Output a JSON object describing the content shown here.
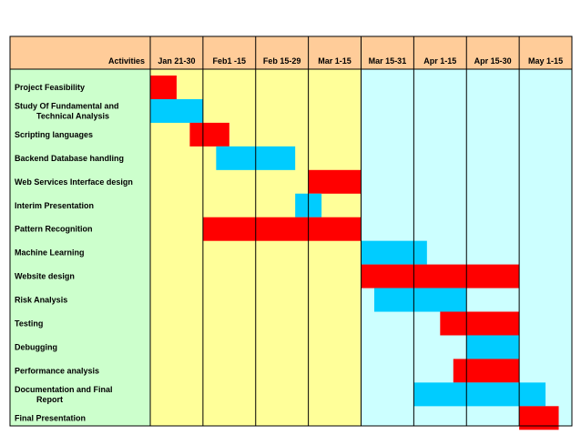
{
  "chart_data": {
    "type": "gantt",
    "header_label": "Activities",
    "periods": [
      "Jan 21-30",
      "Feb1 -15",
      "Feb 15-29",
      "Mar 1-15",
      "Mar 15-31",
      "Apr 1-15",
      "Apr 15-30",
      "May 1-15"
    ],
    "activities": [
      {
        "label": [
          "Project Feasibility"
        ],
        "start": 0.0,
        "end": 0.5,
        "status": "red"
      },
      {
        "label": [
          "Study Of Fundamental and",
          "Technical Analysis"
        ],
        "start": 0.0,
        "end": 1.0,
        "status": "blue"
      },
      {
        "label": [
          "Scripting languages"
        ],
        "start": 0.75,
        "end": 1.5,
        "status": "red"
      },
      {
        "label": [
          "Backend Database handling"
        ],
        "start": 1.25,
        "end": 2.75,
        "status": "blue"
      },
      {
        "label": [
          "Web Services Interface design"
        ],
        "start": 3.0,
        "end": 4.0,
        "status": "red"
      },
      {
        "label": [
          "Interim Presentation"
        ],
        "start": 2.75,
        "end": 3.25,
        "status": "blue"
      },
      {
        "label": [
          "Pattern Recognition"
        ],
        "start": 1.0,
        "end": 4.0,
        "status": "red"
      },
      {
        "label": [
          "Machine Learning"
        ],
        "start": 4.0,
        "end": 5.25,
        "status": "blue"
      },
      {
        "label": [
          "Website design"
        ],
        "start": 4.0,
        "end": 7.0,
        "status": "red"
      },
      {
        "label": [
          "Risk Analysis"
        ],
        "start": 4.25,
        "end": 6.0,
        "status": "blue"
      },
      {
        "label": [
          "Testing"
        ],
        "start": 5.5,
        "end": 7.0,
        "status": "red"
      },
      {
        "label": [
          "Debugging"
        ],
        "start": 6.0,
        "end": 7.0,
        "status": "blue"
      },
      {
        "label": [
          "Performance analysis"
        ],
        "start": 5.75,
        "end": 7.0,
        "status": "red"
      },
      {
        "label": [
          "Documentation and Final",
          "Report"
        ],
        "start": 5.0,
        "end": 7.5,
        "status": "blue"
      },
      {
        "label": [
          "Final Presentation"
        ],
        "start": 7.0,
        "end": 7.75,
        "status": "red"
      }
    ]
  },
  "colors": {
    "header_bg": "#FFCC99",
    "activity_bg": "#CCFFCC",
    "early_period_bg": "#FFFF99",
    "late_period_bg": "#CCFFFF",
    "bar_red": "#FF0000",
    "bar_blue": "#00CCFF",
    "grid": "#000000"
  }
}
